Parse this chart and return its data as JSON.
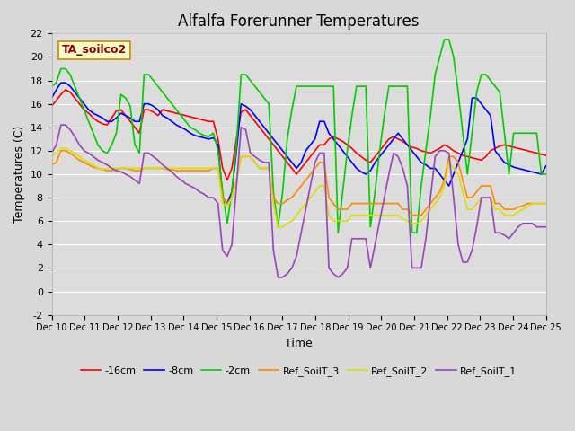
{
  "title": "Alfalfa Forerunner Temperatures",
  "xlabel": "Time",
  "ylabel": "Temperatures (C)",
  "annotation": "TA_soilco2",
  "x_tick_labels": [
    "Dec 10",
    "Dec 11",
    "Dec 12",
    "Dec 13",
    "Dec 14",
    "Dec 15",
    "Dec 16",
    "Dec 17",
    "Dec 18",
    "Dec 19",
    "Dec 20",
    "Dec 21",
    "Dec 22",
    "Dec 23",
    "Dec 24",
    "Dec 25"
  ],
  "ylim": [
    -2,
    22
  ],
  "background_color": "#dcdcdc",
  "fig_background": "#d8d8d8",
  "title_fontsize": 12,
  "label_fontsize": 9,
  "series": {
    "-16cm": {
      "color": "#ff0000",
      "values": [
        15.8,
        16.3,
        16.8,
        17.2,
        17.0,
        16.5,
        16.0,
        15.5,
        15.2,
        14.8,
        14.5,
        14.3,
        14.2,
        14.8,
        15.4,
        15.5,
        15.0,
        14.5,
        14.0,
        13.5,
        15.5,
        15.5,
        15.3,
        15.0,
        15.5,
        15.4,
        15.3,
        15.2,
        15.1,
        15.0,
        14.9,
        14.8,
        14.7,
        14.6,
        14.5,
        14.5,
        13.0,
        10.5,
        9.5,
        10.5,
        13.0,
        15.3,
        15.5,
        15.0,
        14.5,
        14.0,
        13.5,
        13.0,
        12.5,
        12.0,
        11.5,
        11.0,
        10.5,
        10.0,
        10.5,
        11.0,
        11.5,
        12.0,
        12.5,
        12.5,
        13.0,
        13.2,
        13.0,
        12.8,
        12.5,
        12.2,
        11.8,
        11.5,
        11.2,
        11.0,
        11.5,
        12.0,
        12.5,
        13.0,
        13.2,
        13.0,
        12.8,
        12.5,
        12.3,
        12.2,
        12.0,
        11.9,
        11.8,
        12.0,
        12.2,
        12.5,
        12.3,
        12.0,
        11.8,
        11.6,
        11.5,
        11.4,
        11.3,
        11.2,
        11.5,
        12.0,
        12.2,
        12.4,
        12.5,
        12.4,
        12.3,
        12.2,
        12.1,
        12.0,
        11.9,
        11.8,
        11.7,
        11.6
      ]
    },
    "-8cm": {
      "color": "#0000ff",
      "values": [
        16.5,
        17.2,
        17.8,
        17.8,
        17.5,
        17.0,
        16.5,
        16.0,
        15.5,
        15.2,
        15.0,
        14.8,
        14.5,
        14.5,
        14.8,
        15.2,
        15.0,
        14.8,
        14.5,
        14.5,
        16.0,
        16.0,
        15.8,
        15.5,
        15.0,
        14.8,
        14.5,
        14.2,
        14.0,
        13.8,
        13.5,
        13.3,
        13.2,
        13.1,
        13.0,
        13.1,
        12.5,
        8.0,
        7.5,
        8.5,
        12.0,
        16.0,
        15.8,
        15.5,
        15.0,
        14.5,
        14.0,
        13.5,
        13.0,
        12.5,
        12.0,
        11.5,
        11.0,
        10.5,
        11.0,
        12.0,
        12.5,
        13.0,
        14.5,
        14.5,
        13.5,
        13.0,
        12.5,
        12.0,
        11.5,
        11.0,
        10.5,
        10.2,
        10.0,
        10.3,
        11.0,
        11.5,
        12.0,
        12.5,
        13.0,
        13.5,
        13.0,
        12.5,
        12.0,
        11.5,
        11.0,
        10.8,
        10.5,
        10.5,
        10.0,
        9.5,
        9.0,
        10.0,
        11.0,
        12.0,
        13.0,
        16.5,
        16.5,
        16.0,
        15.5,
        15.0,
        12.0,
        11.5,
        11.0,
        10.8,
        10.6,
        10.5,
        10.4,
        10.3,
        10.2,
        10.1,
        10.0,
        10.7
      ]
    },
    "-2cm": {
      "color": "#00cc00",
      "values": [
        17.5,
        17.8,
        19.0,
        19.0,
        18.5,
        17.5,
        16.5,
        15.5,
        14.5,
        13.5,
        12.5,
        12.0,
        11.8,
        12.5,
        13.5,
        16.8,
        16.5,
        15.8,
        12.5,
        11.8,
        18.5,
        18.5,
        18.0,
        17.5,
        17.0,
        16.5,
        16.0,
        15.5,
        15.0,
        14.5,
        14.0,
        13.8,
        13.5,
        13.3,
        13.2,
        13.5,
        12.0,
        8.5,
        5.8,
        8.5,
        12.5,
        18.5,
        18.5,
        18.0,
        17.5,
        17.0,
        16.5,
        16.0,
        8.5,
        5.5,
        8.5,
        13.0,
        15.5,
        17.5,
        17.5,
        17.5,
        17.5,
        17.5,
        17.5,
        17.5,
        17.5,
        17.5,
        5.0,
        8.5,
        12.0,
        15.0,
        17.5,
        17.5,
        17.5,
        5.5,
        8.5,
        12.0,
        15.0,
        17.5,
        17.5,
        17.5,
        17.5,
        17.5,
        5.0,
        5.0,
        9.0,
        12.0,
        15.0,
        18.5,
        20.0,
        21.5,
        21.5,
        20.0,
        17.0,
        13.5,
        10.0,
        13.5,
        17.0,
        18.5,
        18.5,
        18.0,
        17.5,
        17.0,
        13.5,
        10.0,
        13.5,
        13.5,
        13.5,
        13.5,
        13.5,
        13.5,
        10.0,
        10.0
      ]
    },
    "Ref_SoilT_3": {
      "color": "#ff8800",
      "values": [
        10.8,
        11.0,
        12.0,
        12.0,
        11.8,
        11.5,
        11.2,
        11.0,
        10.8,
        10.6,
        10.5,
        10.4,
        10.3,
        10.3,
        10.4,
        10.5,
        10.5,
        10.4,
        10.3,
        10.3,
        10.5,
        10.5,
        10.5,
        10.5,
        10.5,
        10.4,
        10.4,
        10.3,
        10.3,
        10.3,
        10.3,
        10.3,
        10.3,
        10.3,
        10.3,
        10.5,
        10.5,
        8.0,
        7.5,
        8.0,
        9.5,
        11.5,
        11.5,
        11.5,
        11.0,
        10.5,
        10.5,
        10.5,
        8.0,
        7.5,
        7.5,
        7.8,
        8.0,
        8.5,
        9.0,
        9.5,
        10.0,
        10.5,
        11.0,
        11.0,
        8.0,
        7.5,
        7.0,
        7.0,
        7.0,
        7.5,
        7.5,
        7.5,
        7.5,
        7.5,
        7.5,
        7.5,
        7.5,
        7.5,
        7.5,
        7.5,
        7.0,
        7.0,
        6.5,
        6.5,
        6.5,
        7.0,
        7.5,
        8.0,
        8.5,
        9.5,
        11.5,
        11.5,
        11.0,
        9.5,
        8.0,
        8.0,
        8.5,
        9.0,
        9.0,
        9.0,
        7.5,
        7.5,
        7.0,
        7.0,
        7.0,
        7.2,
        7.3,
        7.5,
        7.5,
        7.5,
        7.5,
        7.5
      ]
    },
    "Ref_SoilT_2": {
      "color": "#dddd00",
      "values": [
        11.5,
        11.8,
        12.2,
        12.2,
        12.0,
        11.8,
        11.5,
        11.2,
        11.0,
        10.8,
        10.5,
        10.4,
        10.5,
        10.5,
        10.5,
        10.5,
        10.5,
        10.5,
        10.5,
        10.5,
        10.5,
        10.5,
        10.5,
        10.5,
        10.5,
        10.5,
        10.5,
        10.5,
        10.5,
        10.5,
        10.5,
        10.5,
        10.5,
        10.5,
        10.5,
        10.5,
        10.5,
        7.5,
        7.2,
        8.0,
        9.5,
        11.5,
        11.5,
        11.5,
        11.0,
        10.5,
        10.5,
        10.5,
        7.5,
        5.5,
        5.5,
        5.8,
        6.0,
        6.5,
        7.0,
        7.5,
        8.0,
        8.5,
        9.0,
        9.0,
        6.5,
        6.0,
        6.0,
        6.0,
        6.0,
        6.5,
        6.5,
        6.5,
        6.5,
        6.5,
        6.5,
        6.5,
        6.5,
        6.5,
        6.5,
        6.5,
        6.2,
        6.0,
        5.8,
        5.8,
        6.0,
        6.5,
        7.0,
        7.5,
        8.0,
        9.0,
        11.0,
        10.5,
        10.0,
        8.5,
        7.0,
        7.0,
        7.5,
        8.0,
        8.0,
        8.0,
        7.0,
        7.0,
        6.5,
        6.5,
        6.5,
        6.8,
        7.0,
        7.2,
        7.5,
        7.5,
        7.5,
        7.5
      ]
    },
    "Ref_SoilT_1": {
      "color": "#9944bb",
      "values": [
        11.8,
        12.5,
        14.2,
        14.2,
        13.8,
        13.2,
        12.5,
        12.0,
        11.8,
        11.5,
        11.2,
        11.0,
        10.8,
        10.5,
        10.3,
        10.2,
        10.0,
        9.8,
        9.5,
        9.2,
        11.8,
        11.8,
        11.5,
        11.2,
        10.8,
        10.5,
        10.2,
        9.8,
        9.5,
        9.2,
        9.0,
        8.8,
        8.5,
        8.3,
        8.0,
        8.0,
        7.5,
        3.5,
        3.0,
        4.0,
        9.0,
        14.0,
        13.8,
        11.8,
        11.5,
        11.2,
        11.0,
        11.0,
        3.5,
        1.2,
        1.2,
        1.5,
        2.0,
        3.0,
        5.0,
        7.0,
        9.0,
        11.0,
        11.8,
        11.8,
        2.0,
        1.5,
        1.2,
        1.5,
        2.0,
        4.5,
        4.5,
        4.5,
        4.5,
        2.0,
        4.0,
        6.0,
        8.0,
        10.0,
        11.8,
        11.5,
        10.5,
        9.0,
        2.0,
        2.0,
        2.0,
        4.5,
        8.0,
        11.5,
        12.0,
        12.0,
        11.8,
        8.0,
        4.0,
        2.5,
        2.5,
        3.5,
        5.5,
        8.0,
        8.0,
        8.0,
        5.0,
        5.0,
        4.8,
        4.5,
        5.0,
        5.5,
        5.8,
        5.8,
        5.8,
        5.5,
        5.5,
        5.5
      ]
    }
  }
}
